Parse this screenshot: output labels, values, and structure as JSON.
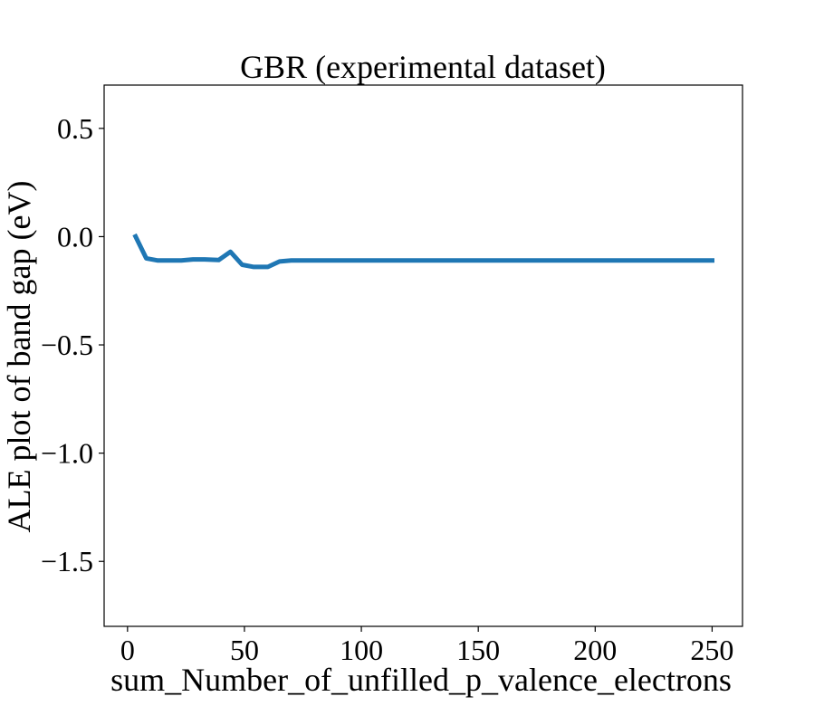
{
  "chart_data": {
    "type": "line",
    "title": "GBR (experimental dataset)",
    "xlabel": "sum_Number_of_unfilled_p_valence_electrons",
    "ylabel": "ALE plot of band gap (eV)",
    "xlim": [
      -10,
      263
    ],
    "ylim": [
      -1.8,
      0.7
    ],
    "xticks": [
      0,
      50,
      100,
      150,
      200,
      250
    ],
    "xtick_labels": [
      "0",
      "50",
      "100",
      "150",
      "200",
      "250"
    ],
    "yticks": [
      0.5,
      0.0,
      -0.5,
      -1.0,
      -1.5
    ],
    "ytick_labels": [
      "0.5",
      "0.0",
      "−0.5",
      "−1.0",
      "−1.5"
    ],
    "grid": false,
    "color": "#1f77b4",
    "series": [
      {
        "x": [
          3,
          8,
          13,
          18,
          23,
          28,
          33,
          39,
          44,
          49,
          54,
          60,
          65,
          70,
          80,
          100,
          150,
          200,
          251
        ],
        "y": [
          0.01,
          -0.1,
          -0.11,
          -0.11,
          -0.11,
          -0.105,
          -0.105,
          -0.108,
          -0.07,
          -0.13,
          -0.14,
          -0.14,
          -0.115,
          -0.11,
          -0.11,
          -0.11,
          -0.11,
          -0.11,
          -0.11
        ]
      }
    ]
  }
}
